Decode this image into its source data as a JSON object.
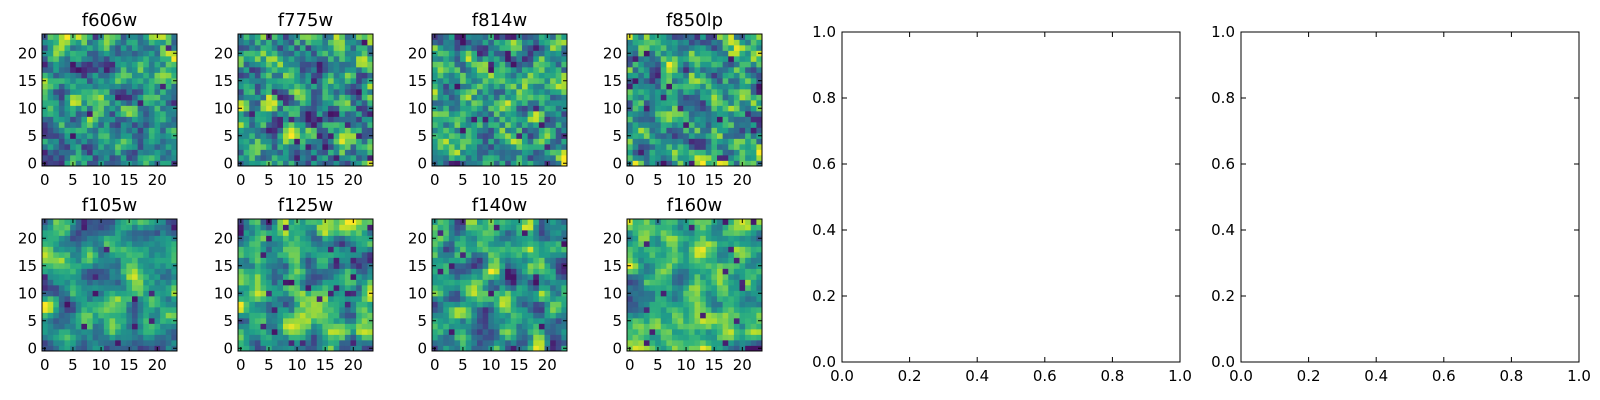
{
  "chart_data": {
    "type": "heatmap",
    "colormap": "viridis",
    "grid_size": [
      24,
      24
    ],
    "image_panels": [
      {
        "title": "f606w",
        "seed": 11,
        "smooth": 0.35,
        "xticks": [
          "0",
          "5",
          "10",
          "15",
          "20"
        ],
        "yticks": [
          "0",
          "5",
          "10",
          "15",
          "20"
        ]
      },
      {
        "title": "f775w",
        "seed": 23,
        "smooth": 0.35,
        "xticks": [
          "0",
          "5",
          "10",
          "15",
          "20"
        ],
        "yticks": [
          "0",
          "5",
          "10",
          "15",
          "20"
        ]
      },
      {
        "title": "f814w",
        "seed": 37,
        "smooth": 0.35,
        "xticks": [
          "0",
          "5",
          "10",
          "15",
          "20"
        ],
        "yticks": [
          "0",
          "5",
          "10",
          "15",
          "20"
        ]
      },
      {
        "title": "f850lp",
        "seed": 41,
        "smooth": 0.35,
        "xticks": [
          "0",
          "5",
          "10",
          "15",
          "20"
        ],
        "yticks": [
          "0",
          "5",
          "10",
          "15",
          "20"
        ]
      },
      {
        "title": "f105w",
        "seed": 53,
        "smooth": 0.8,
        "xticks": [
          "0",
          "5",
          "10",
          "15",
          "20"
        ],
        "yticks": [
          "0",
          "5",
          "10",
          "15",
          "20"
        ]
      },
      {
        "title": "f125w",
        "seed": 67,
        "smooth": 0.8,
        "xticks": [
          "0",
          "5",
          "10",
          "15",
          "20"
        ],
        "yticks": [
          "0",
          "5",
          "10",
          "15",
          "20"
        ]
      },
      {
        "title": "f140w",
        "seed": 79,
        "smooth": 0.8,
        "xticks": [
          "0",
          "5",
          "10",
          "15",
          "20"
        ],
        "yticks": [
          "0",
          "5",
          "10",
          "15",
          "20"
        ]
      },
      {
        "title": "f160w",
        "seed": 83,
        "smooth": 0.8,
        "xticks": [
          "0",
          "5",
          "10",
          "15",
          "20"
        ],
        "yticks": [
          "0",
          "5",
          "10",
          "15",
          "20"
        ]
      }
    ],
    "empty_panels": [
      {
        "xlim": [
          0.0,
          1.0
        ],
        "ylim": [
          0.0,
          1.0
        ],
        "xticks": [
          "0.0",
          "0.2",
          "0.4",
          "0.6",
          "0.8",
          "1.0"
        ],
        "yticks": [
          "0.0",
          "0.2",
          "0.4",
          "0.6",
          "0.8",
          "1.0"
        ]
      },
      {
        "xlim": [
          0.0,
          1.0
        ],
        "ylim": [
          0.0,
          1.0
        ],
        "xticks": [
          "0.0",
          "0.2",
          "0.4",
          "0.6",
          "0.8",
          "1.0"
        ],
        "yticks": [
          "0.0",
          "0.2",
          "0.4",
          "0.6",
          "0.8",
          "1.0"
        ]
      }
    ]
  }
}
